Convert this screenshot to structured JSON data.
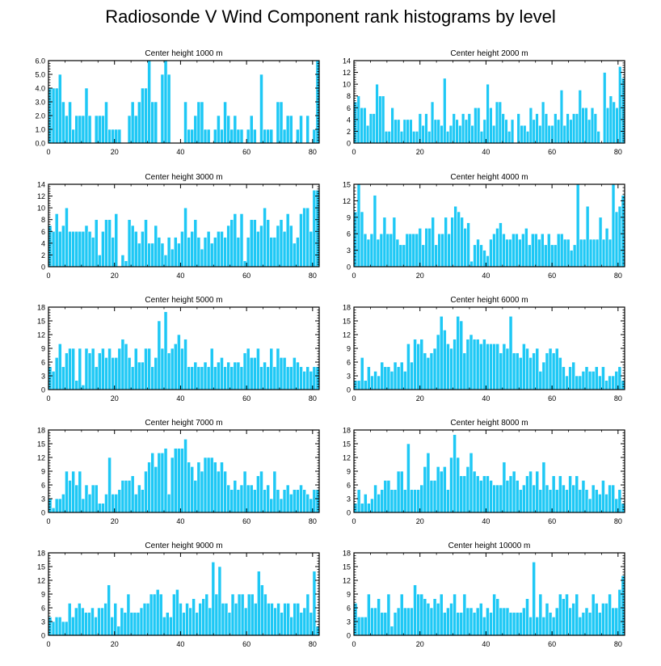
{
  "figure": {
    "title": "Radiosonde V Wind Component rank histograms by level",
    "bar_color": "#1EC8F5",
    "bar_edge": "#ffffff",
    "frame_color": "#000000"
  },
  "chart_data": [
    {
      "type": "bar",
      "title": "Center height 1000 m",
      "xlim": [
        0,
        82
      ],
      "xticks": [
        0,
        20,
        40,
        60,
        80
      ],
      "ylim": [
        0,
        6
      ],
      "yticks": [
        0,
        1,
        2,
        3,
        4,
        5,
        6
      ],
      "ytick_labels": [
        "0.0",
        "1.0",
        "2.0",
        "3.0",
        "4.0",
        "5.0",
        "6.0"
      ],
      "values": [
        4,
        4,
        4,
        5,
        3,
        2,
        3,
        1,
        2,
        2,
        2,
        4,
        2,
        0,
        2,
        2,
        2,
        3,
        1,
        1,
        1,
        1,
        0,
        0,
        2,
        3,
        2,
        3,
        4,
        4,
        6,
        3,
        3,
        0,
        5,
        6,
        5,
        0,
        0,
        0,
        0,
        3,
        1,
        1,
        2,
        3,
        3,
        1,
        1,
        0,
        1,
        2,
        1,
        3,
        2,
        1,
        2,
        1,
        1,
        0,
        1,
        2,
        1,
        0,
        5,
        1,
        1,
        1,
        0,
        3,
        3,
        1,
        2,
        2,
        0,
        1,
        2,
        0,
        2,
        0,
        1,
        6
      ]
    },
    {
      "type": "bar",
      "title": "Center height 2000 m",
      "xlim": [
        0,
        82
      ],
      "xticks": [
        0,
        20,
        40,
        60,
        80
      ],
      "ylim": [
        0,
        14
      ],
      "yticks": [
        0,
        2,
        4,
        6,
        8,
        10,
        12,
        14
      ],
      "ytick_labels": [
        "0",
        "2",
        "4",
        "6",
        "8",
        "10",
        "12",
        "14"
      ],
      "values": [
        7,
        8,
        6,
        6,
        3,
        5,
        5,
        10,
        8,
        8,
        2,
        2,
        6,
        4,
        4,
        2,
        4,
        4,
        4,
        2,
        2,
        5,
        3,
        5,
        2,
        7,
        4,
        4,
        3,
        11,
        2,
        3,
        5,
        4,
        3,
        5,
        4,
        5,
        3,
        6,
        6,
        2,
        4,
        10,
        6,
        3,
        7,
        7,
        5,
        4,
        2,
        4,
        0,
        5,
        3,
        3,
        2,
        6,
        4,
        5,
        3,
        7,
        5,
        3,
        3,
        5,
        4,
        9,
        3,
        5,
        4,
        5,
        5,
        9,
        6,
        6,
        4,
        6,
        5,
        2,
        0,
        12,
        6,
        8,
        7,
        6,
        13,
        11
      ]
    },
    {
      "type": "bar",
      "title": "Center height 3000 m",
      "xlim": [
        0,
        82
      ],
      "xticks": [
        0,
        20,
        40,
        60,
        80
      ],
      "ylim": [
        0,
        14
      ],
      "yticks": [
        0,
        2,
        4,
        6,
        8,
        10,
        12,
        14
      ],
      "ytick_labels": [
        "0",
        "2",
        "4",
        "6",
        "8",
        "10",
        "12",
        "14"
      ],
      "values": [
        7,
        6,
        9,
        6,
        7,
        10,
        6,
        6,
        6,
        6,
        6,
        7,
        6,
        5,
        8,
        2,
        6,
        8,
        8,
        5,
        9,
        0,
        2,
        1,
        8,
        7,
        6,
        4,
        6,
        8,
        4,
        4,
        7,
        5,
        4,
        2,
        5,
        3,
        5,
        4,
        6,
        10,
        5,
        6,
        8,
        5,
        3,
        5,
        6,
        4,
        5,
        6,
        6,
        5,
        7,
        8,
        9,
        5,
        9,
        1,
        5,
        8,
        8,
        6,
        7,
        10,
        8,
        5,
        5,
        7,
        8,
        6,
        9,
        7,
        4,
        5,
        9,
        10,
        10,
        6,
        13,
        13
      ]
    },
    {
      "type": "bar",
      "title": "Center height 4000 m",
      "xlim": [
        0,
        82
      ],
      "xticks": [
        0,
        20,
        40,
        60,
        80
      ],
      "ylim": [
        0,
        15
      ],
      "yticks": [
        0,
        3,
        6,
        9,
        12,
        15
      ],
      "ytick_labels": [
        "0",
        "3",
        "6",
        "9",
        "12",
        "15"
      ],
      "values": [
        10,
        15,
        10,
        6,
        5,
        6,
        13,
        5,
        6,
        9,
        6,
        6,
        9,
        5,
        4,
        4,
        6,
        6,
        6,
        6,
        7,
        4,
        7,
        7,
        9,
        4,
        6,
        6,
        9,
        6,
        9,
        11,
        10,
        9,
        7,
        8,
        1,
        4,
        5,
        4,
        3,
        2,
        5,
        6,
        7,
        8,
        6,
        5,
        5,
        6,
        6,
        5,
        6,
        7,
        4,
        6,
        6,
        5,
        6,
        4,
        6,
        4,
        4,
        6,
        6,
        5,
        5,
        3,
        4,
        15,
        5,
        5,
        11,
        5,
        5,
        5,
        9,
        5,
        7,
        5,
        15,
        10,
        11,
        13
      ]
    },
    {
      "type": "bar",
      "title": "Center height 5000 m",
      "xlim": [
        0,
        82
      ],
      "xticks": [
        0,
        20,
        40,
        60,
        80
      ],
      "ylim": [
        0,
        18
      ],
      "yticks": [
        0,
        3,
        6,
        9,
        12,
        15,
        18
      ],
      "ytick_labels": [
        "0",
        "3",
        "6",
        "9",
        "12",
        "15",
        "18"
      ],
      "values": [
        5,
        4,
        7,
        10,
        5,
        8,
        9,
        9,
        2,
        9,
        1,
        9,
        8,
        9,
        5,
        8,
        9,
        7,
        9,
        7,
        7,
        9,
        11,
        10,
        7,
        5,
        9,
        6,
        6,
        9,
        9,
        5,
        7,
        15,
        9,
        17,
        8,
        9,
        10,
        12,
        9,
        11,
        5,
        5,
        6,
        5,
        5,
        6,
        5,
        9,
        5,
        6,
        7,
        5,
        6,
        5,
        6,
        6,
        5,
        8,
        9,
        7,
        7,
        9,
        5,
        6,
        5,
        9,
        5,
        9,
        7,
        7,
        5,
        5,
        7,
        6,
        5,
        4,
        5,
        4,
        5,
        5
      ]
    },
    {
      "type": "bar",
      "title": "Center height 6000 m",
      "xlim": [
        0,
        82
      ],
      "xticks": [
        0,
        20,
        40,
        60,
        80
      ],
      "ylim": [
        0,
        18
      ],
      "yticks": [
        0,
        3,
        6,
        9,
        12,
        15,
        18
      ],
      "ytick_labels": [
        "0",
        "3",
        "6",
        "9",
        "12",
        "15",
        "18"
      ],
      "values": [
        2,
        2,
        7,
        2,
        5,
        3,
        4,
        3,
        6,
        5,
        5,
        4,
        6,
        5,
        6,
        4,
        10,
        6,
        11,
        10,
        11,
        8,
        7,
        8,
        9,
        12,
        16,
        13,
        10,
        9,
        11,
        16,
        15,
        8,
        11,
        12,
        11,
        11,
        10,
        11,
        10,
        10,
        10,
        10,
        8,
        10,
        9,
        16,
        8,
        8,
        7,
        10,
        9,
        7,
        8,
        9,
        4,
        6,
        8,
        9,
        8,
        9,
        7,
        5,
        3,
        5,
        6,
        3,
        3,
        4,
        5,
        4,
        4,
        5,
        3,
        5,
        2,
        3,
        3,
        4,
        5,
        2
      ]
    },
    {
      "type": "bar",
      "title": "Center height 7000 m",
      "xlim": [
        0,
        82
      ],
      "xticks": [
        0,
        20,
        40,
        60,
        80
      ],
      "ylim": [
        0,
        18
      ],
      "yticks": [
        0,
        3,
        6,
        9,
        12,
        15,
        18
      ],
      "ytick_labels": [
        "0",
        "3",
        "6",
        "9",
        "12",
        "15",
        "18"
      ],
      "values": [
        3,
        1,
        3,
        3,
        4,
        9,
        7,
        9,
        6,
        9,
        3,
        6,
        4,
        6,
        6,
        2,
        2,
        4,
        12,
        4,
        4,
        5,
        7,
        7,
        7,
        8,
        4,
        6,
        5,
        9,
        11,
        13,
        10,
        13,
        13,
        14,
        4,
        12,
        14,
        14,
        14,
        16,
        11,
        10,
        7,
        11,
        9,
        12,
        12,
        12,
        11,
        9,
        11,
        9,
        6,
        5,
        7,
        5,
        6,
        9,
        6,
        6,
        5,
        8,
        9,
        5,
        6,
        3,
        9,
        5,
        3,
        5,
        6,
        4,
        5,
        5,
        6,
        5,
        4,
        3,
        5,
        5
      ]
    },
    {
      "type": "bar",
      "title": "Center height 8000 m",
      "xlim": [
        0,
        82
      ],
      "xticks": [
        0,
        20,
        40,
        60,
        80
      ],
      "ylim": [
        0,
        18
      ],
      "yticks": [
        0,
        3,
        6,
        9,
        12,
        15,
        18
      ],
      "ytick_labels": [
        "0",
        "3",
        "6",
        "9",
        "12",
        "15",
        "18"
      ],
      "values": [
        2,
        5,
        2,
        4,
        2,
        3,
        6,
        4,
        5,
        7,
        7,
        5,
        5,
        9,
        9,
        5,
        15,
        5,
        5,
        5,
        6,
        10,
        13,
        7,
        7,
        10,
        9,
        10,
        5,
        12,
        17,
        12,
        8,
        8,
        10,
        13,
        9,
        8,
        7,
        8,
        8,
        7,
        6,
        6,
        6,
        11,
        7,
        8,
        9,
        7,
        5,
        6,
        8,
        9,
        6,
        9,
        5,
        11,
        6,
        5,
        8,
        5,
        8,
        6,
        5,
        8,
        6,
        8,
        5,
        7,
        5,
        3,
        6,
        5,
        4,
        7,
        4,
        6,
        6,
        3,
        5,
        2
      ]
    },
    {
      "type": "bar",
      "title": "Center height 9000 m",
      "xlim": [
        0,
        82
      ],
      "xticks": [
        0,
        20,
        40,
        60,
        80
      ],
      "ylim": [
        0,
        18
      ],
      "yticks": [
        0,
        3,
        6,
        9,
        12,
        15,
        18
      ],
      "ytick_labels": [
        "0",
        "3",
        "6",
        "9",
        "12",
        "15",
        "18"
      ],
      "values": [
        4,
        3,
        4,
        4,
        3,
        3,
        7,
        4,
        6,
        7,
        6,
        5,
        5,
        6,
        4,
        6,
        6,
        7,
        11,
        4,
        7,
        2,
        6,
        5,
        9,
        5,
        5,
        5,
        6,
        7,
        7,
        9,
        9,
        10,
        9,
        4,
        5,
        4,
        9,
        10,
        7,
        5,
        7,
        6,
        8,
        5,
        7,
        8,
        9,
        6,
        16,
        9,
        15,
        7,
        7,
        5,
        9,
        7,
        9,
        9,
        6,
        9,
        9,
        7,
        14,
        11,
        9,
        7,
        7,
        6,
        7,
        5,
        7,
        7,
        4,
        7,
        7,
        5,
        6,
        9,
        5,
        14,
        2
      ]
    },
    {
      "type": "bar",
      "title": "Center height 10000 m",
      "xlim": [
        0,
        82
      ],
      "xticks": [
        0,
        20,
        40,
        60,
        80
      ],
      "ylim": [
        0,
        18
      ],
      "yticks": [
        0,
        3,
        6,
        9,
        12,
        15,
        18
      ],
      "ytick_labels": [
        "0",
        "3",
        "6",
        "9",
        "12",
        "15",
        "18"
      ],
      "values": [
        7,
        4,
        4,
        4,
        9,
        6,
        6,
        8,
        5,
        5,
        9,
        2,
        5,
        6,
        9,
        6,
        6,
        6,
        11,
        9,
        9,
        8,
        7,
        6,
        8,
        7,
        9,
        5,
        6,
        7,
        9,
        5,
        5,
        9,
        6,
        6,
        5,
        6,
        7,
        4,
        6,
        5,
        9,
        8,
        6,
        6,
        6,
        5,
        5,
        5,
        5,
        6,
        8,
        4,
        16,
        4,
        9,
        4,
        7,
        5,
        4,
        6,
        9,
        8,
        9,
        6,
        7,
        9,
        4,
        5,
        6,
        5,
        9,
        7,
        5,
        7,
        7,
        9,
        6,
        6,
        10,
        13
      ]
    }
  ]
}
